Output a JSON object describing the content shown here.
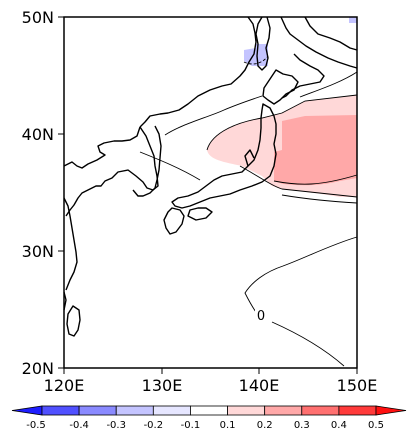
{
  "map": {
    "lat_labels": [
      "50N",
      "40N",
      "30N",
      "20N"
    ],
    "lon_labels": [
      "120E",
      "130E",
      "140E",
      "150E"
    ],
    "contour_label": "0"
  },
  "colorbar": {
    "labels": [
      "-0.5",
      "-0.4",
      "-0.3",
      "-0.2",
      "-0.1",
      "0.1",
      "0.2",
      "0.3",
      "0.4",
      "0.5"
    ],
    "colors": [
      "#1e1eff",
      "#5050ff",
      "#8a8aff",
      "#c4c4ff",
      "#e6e6ff",
      "#ffffff",
      "#ffd8d8",
      "#ffa8a8",
      "#ff7070",
      "#ff3a3a",
      "#ff1010"
    ]
  },
  "colors": {
    "shade_light_red": "#ffd8d8",
    "shade_medium_red": "#ffa8a8",
    "shade_light_blue": "#c4c4ff"
  }
}
